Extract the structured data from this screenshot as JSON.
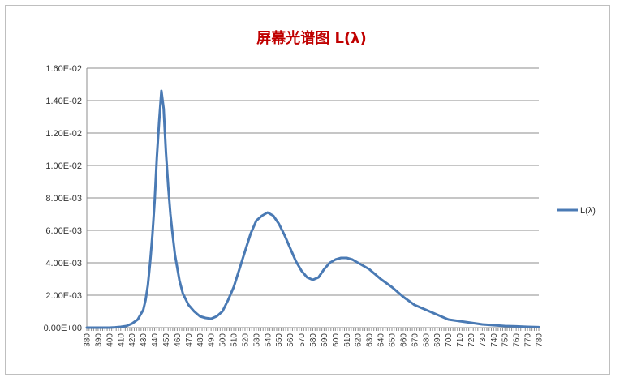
{
  "chart_data": {
    "type": "line",
    "title": "屏幕光谱图 L(λ)",
    "xlabel": "",
    "ylabel": "",
    "ylim": [
      0,
      0.016
    ],
    "y_ticks": [
      "0.00E+00",
      "2.00E-03",
      "4.00E-03",
      "6.00E-03",
      "8.00E-03",
      "1.00E-02",
      "1.20E-02",
      "1.40E-02",
      "1.60E-02"
    ],
    "x_ticks": [
      "380",
      "390",
      "400",
      "410",
      "420",
      "430",
      "440",
      "450",
      "460",
      "470",
      "480",
      "490",
      "500",
      "510",
      "520",
      "530",
      "540",
      "550",
      "560",
      "570",
      "580",
      "590",
      "600",
      "610",
      "620",
      "630",
      "640",
      "650",
      "660",
      "670",
      "680",
      "690",
      "700",
      "710",
      "720",
      "730",
      "740",
      "750",
      "760",
      "770",
      "780"
    ],
    "grid": true,
    "legend": "right",
    "line_color": "#4a7ab4",
    "series": [
      {
        "name": "L(λ)",
        "x": [
          380,
          390,
          400,
          405,
          410,
          415,
          420,
          425,
          430,
          432,
          434,
          436,
          438,
          440,
          442,
          444,
          446,
          448,
          450,
          452,
          454,
          456,
          458,
          460,
          462,
          465,
          470,
          475,
          480,
          485,
          490,
          495,
          500,
          505,
          510,
          515,
          520,
          525,
          530,
          535,
          540,
          545,
          550,
          555,
          560,
          565,
          570,
          575,
          580,
          585,
          590,
          595,
          600,
          605,
          610,
          615,
          620,
          625,
          630,
          635,
          640,
          650,
          660,
          670,
          680,
          690,
          700,
          710,
          720,
          730,
          740,
          750,
          760,
          770,
          780
        ],
        "y": [
          0,
          0,
          0,
          2e-05,
          5e-05,
          0.0001,
          0.00025,
          0.0005,
          0.0011,
          0.0017,
          0.0026,
          0.004,
          0.0057,
          0.0078,
          0.0105,
          0.0127,
          0.0146,
          0.0135,
          0.0108,
          0.0087,
          0.007,
          0.0057,
          0.0045,
          0.0037,
          0.0029,
          0.0021,
          0.0014,
          0.001,
          0.0007,
          0.0006,
          0.00055,
          0.0007,
          0.001,
          0.0017,
          0.0025,
          0.0036,
          0.0047,
          0.0058,
          0.0066,
          0.0069,
          0.0071,
          0.0069,
          0.0064,
          0.0057,
          0.0049,
          0.0041,
          0.0035,
          0.0031,
          0.00295,
          0.0031,
          0.0036,
          0.004,
          0.0042,
          0.0043,
          0.0043,
          0.0042,
          0.004,
          0.0038,
          0.0036,
          0.0033,
          0.003,
          0.0025,
          0.0019,
          0.0014,
          0.0011,
          0.0008,
          0.0005,
          0.0004,
          0.0003,
          0.0002,
          0.00015,
          0.0001,
          8e-05,
          5e-05,
          3e-05
        ]
      }
    ]
  }
}
